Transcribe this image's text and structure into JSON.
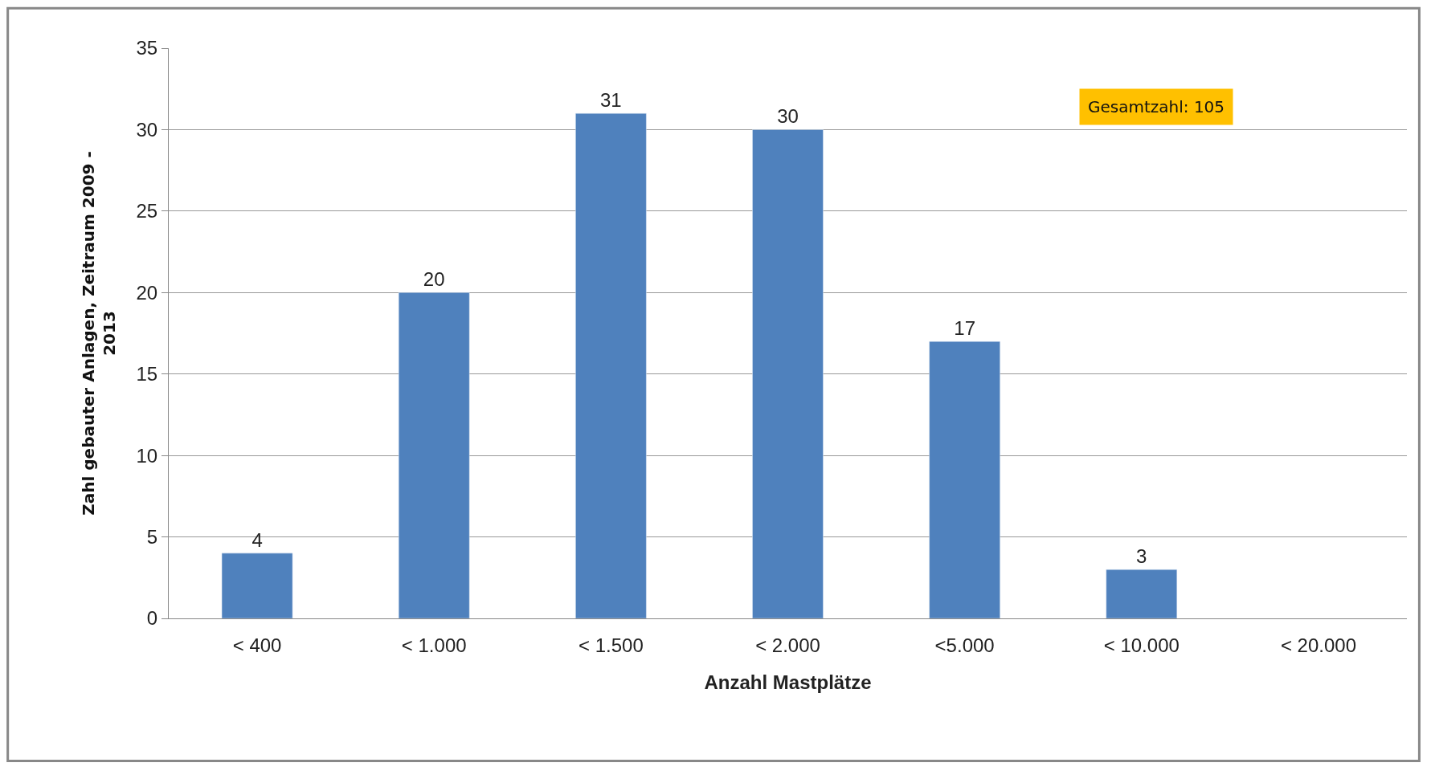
{
  "chart_data": {
    "type": "bar",
    "xlabel": "Anzahl Mastplätze",
    "ylabel": "Zahl gebauter Anlagen, Zeitraum 2009 - 2013",
    "categories": [
      "< 400",
      "< 1.000",
      "< 1.500",
      "< 2.000",
      "<5.000",
      "< 10.000",
      "< 20.000"
    ],
    "values": [
      4,
      20,
      31,
      30,
      17,
      3,
      null
    ],
    "value_labels": [
      "4",
      "20",
      "31",
      "30",
      "17",
      "3",
      null
    ],
    "color": "#4f81bd",
    "ylim": [
      0,
      35
    ],
    "yticks": [
      0,
      5,
      10,
      15,
      20,
      25,
      30,
      35
    ],
    "grid": "y",
    "annotations": [
      "Gesamtzahl: 105"
    ]
  }
}
